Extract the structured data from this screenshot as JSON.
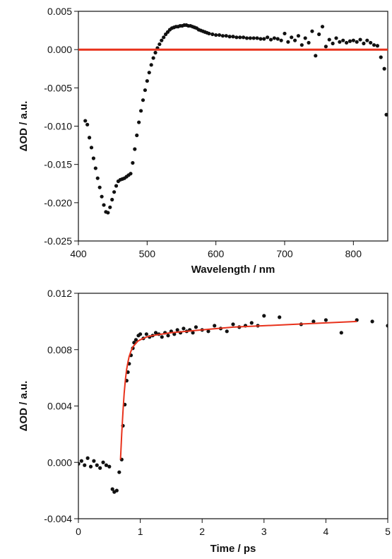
{
  "chart_data": [
    {
      "type": "scatter",
      "xlabel": "Wavelength / nm",
      "ylabel": "ΔOD / a.u.",
      "xlim": [
        400,
        850
      ],
      "ylim": [
        -0.025,
        0.005
      ],
      "xticks": [
        400,
        500,
        600,
        700,
        800
      ],
      "yticks": [
        -0.025,
        -0.02,
        -0.015,
        -0.01,
        -0.005,
        0.0,
        0.005
      ],
      "xtick_labels": [
        "400",
        "500",
        "600",
        "700",
        "800"
      ],
      "ytick_labels": [
        "-0.025",
        "-0.020",
        "-0.015",
        "-0.010",
        "-0.005",
        "0.000",
        "0.005"
      ],
      "grid": false,
      "colors": {
        "points": "#111111",
        "line": "#e8321c"
      },
      "series": [
        {
          "kind": "points",
          "x": [
            410,
            413,
            416,
            419,
            422,
            425,
            428,
            431,
            434,
            437,
            440,
            443,
            446,
            449,
            452,
            455,
            458,
            461,
            464,
            467,
            470,
            473,
            476,
            479,
            482,
            485,
            488,
            491,
            494,
            497,
            500,
            503,
            506,
            509,
            512,
            515,
            518,
            521,
            524,
            527,
            530,
            533,
            536,
            539,
            542,
            545,
            548,
            551,
            554,
            557,
            560,
            563,
            566,
            569,
            572,
            575,
            578,
            581,
            584,
            587,
            590,
            595,
            600,
            605,
            610,
            615,
            620,
            625,
            630,
            635,
            640,
            645,
            650,
            655,
            660,
            665,
            670,
            675,
            680,
            685,
            690,
            695,
            700,
            705,
            710,
            715,
            720,
            725,
            730,
            735,
            740,
            745,
            750,
            755,
            760,
            765,
            770,
            775,
            780,
            785,
            790,
            795,
            800,
            805,
            810,
            815,
            820,
            825,
            830,
            835,
            840,
            845,
            848
          ],
          "y": [
            -0.0093,
            -0.0098,
            -0.0115,
            -0.0128,
            -0.0142,
            -0.0155,
            -0.0168,
            -0.018,
            -0.0192,
            -0.0203,
            -0.0212,
            -0.0213,
            -0.0206,
            -0.0196,
            -0.0186,
            -0.0178,
            -0.0172,
            -0.017,
            -0.0169,
            -0.0168,
            -0.0166,
            -0.0164,
            -0.0162,
            -0.0148,
            -0.013,
            -0.0112,
            -0.0095,
            -0.008,
            -0.0066,
            -0.0053,
            -0.0041,
            -0.003,
            -0.002,
            -0.0011,
            -0.0004,
            0.0002,
            0.0007,
            0.0012,
            0.0016,
            0.002,
            0.0023,
            0.0026,
            0.0028,
            0.0029,
            0.003,
            0.003,
            0.0031,
            0.0031,
            0.0032,
            0.0032,
            0.0031,
            0.0031,
            0.003,
            0.0029,
            0.0028,
            0.0026,
            0.0025,
            0.0024,
            0.0023,
            0.0022,
            0.0021,
            0.002,
            0.0019,
            0.0019,
            0.0018,
            0.0018,
            0.0017,
            0.0017,
            0.0016,
            0.0016,
            0.0016,
            0.0015,
            0.0015,
            0.0015,
            0.0015,
            0.0014,
            0.0014,
            0.0016,
            0.0013,
            0.0015,
            0.0014,
            0.0012,
            0.0021,
            0.001,
            0.0016,
            0.0012,
            0.0018,
            0.0006,
            0.0015,
            0.0009,
            0.0024,
            -0.0008,
            0.002,
            0.003,
            0.0004,
            0.0013,
            0.0008,
            0.0015,
            0.001,
            0.0012,
            0.0009,
            0.0011,
            0.0012,
            0.001,
            0.0013,
            0.0008,
            0.0012,
            0.0009,
            0.0006,
            0.0005,
            -0.001,
            -0.0025,
            -0.0085
          ]
        },
        {
          "kind": "line",
          "x": [
            400,
            850
          ],
          "y": [
            0.0,
            0.0
          ]
        }
      ]
    },
    {
      "type": "scatter",
      "xlabel": "Time / ps",
      "ylabel": "ΔOD / a.u.",
      "xlim": [
        0,
        5
      ],
      "ylim": [
        -0.004,
        0.012
      ],
      "xticks": [
        0,
        1,
        2,
        3,
        4,
        5
      ],
      "yticks": [
        -0.004,
        0.0,
        0.004,
        0.008,
        0.012
      ],
      "xtick_labels": [
        "0",
        "1",
        "2",
        "3",
        "4",
        "5"
      ],
      "ytick_labels": [
        "-0.004",
        "0.000",
        "0.004",
        "0.008",
        "0.012"
      ],
      "grid": false,
      "colors": {
        "points": "#111111",
        "line": "#e8321c"
      },
      "series": [
        {
          "kind": "points",
          "x": [
            0.0,
            0.05,
            0.1,
            0.15,
            0.2,
            0.25,
            0.3,
            0.35,
            0.4,
            0.45,
            0.5,
            0.55,
            0.58,
            0.62,
            0.66,
            0.7,
            0.72,
            0.75,
            0.78,
            0.8,
            0.82,
            0.85,
            0.88,
            0.9,
            0.93,
            0.97,
            1.0,
            1.05,
            1.1,
            1.15,
            1.2,
            1.25,
            1.3,
            1.35,
            1.4,
            1.45,
            1.5,
            1.55,
            1.6,
            1.65,
            1.7,
            1.75,
            1.8,
            1.85,
            1.9,
            2.0,
            2.1,
            2.2,
            2.3,
            2.4,
            2.5,
            2.6,
            2.7,
            2.8,
            2.9,
            3.0,
            3.25,
            3.6,
            3.8,
            4.0,
            4.25,
            4.5,
            4.75,
            5.0
          ],
          "y": [
            -0.0001,
            0.0001,
            -0.0002,
            0.0003,
            -0.0003,
            0.0001,
            -0.0002,
            -0.0004,
            0.0,
            -0.0002,
            -0.0003,
            -0.0019,
            -0.0021,
            -0.002,
            -0.0007,
            0.0002,
            0.0026,
            0.0041,
            0.0058,
            0.0064,
            0.007,
            0.0076,
            0.0081,
            0.0085,
            0.0087,
            0.009,
            0.0091,
            0.0088,
            0.0091,
            0.0089,
            0.009,
            0.0092,
            0.0091,
            0.0089,
            0.0092,
            0.009,
            0.0093,
            0.0091,
            0.0094,
            0.0092,
            0.0095,
            0.0093,
            0.0094,
            0.0092,
            0.0096,
            0.0094,
            0.0093,
            0.0097,
            0.0095,
            0.0093,
            0.0098,
            0.0096,
            0.0097,
            0.0099,
            0.0097,
            0.0104,
            0.0103,
            0.0098,
            0.01,
            0.0101,
            0.0092,
            0.0101,
            0.01,
            0.0097
          ]
        },
        {
          "kind": "line",
          "x": [
            0.68,
            0.7,
            0.72,
            0.74,
            0.76,
            0.78,
            0.8,
            0.82,
            0.85,
            0.88,
            0.92,
            0.96,
            1.0,
            1.1,
            1.2,
            1.35,
            1.5,
            1.75,
            2.0,
            2.5,
            3.0,
            3.5,
            4.0,
            4.5
          ],
          "y": [
            0.0002,
            0.002,
            0.0036,
            0.0049,
            0.0059,
            0.0066,
            0.0071,
            0.0075,
            0.0079,
            0.0082,
            0.0084,
            0.0086,
            0.0087,
            0.0089,
            0.009,
            0.0091,
            0.0092,
            0.0093,
            0.0094,
            0.0096,
            0.0097,
            0.0098,
            0.0099,
            0.01
          ]
        }
      ]
    }
  ]
}
